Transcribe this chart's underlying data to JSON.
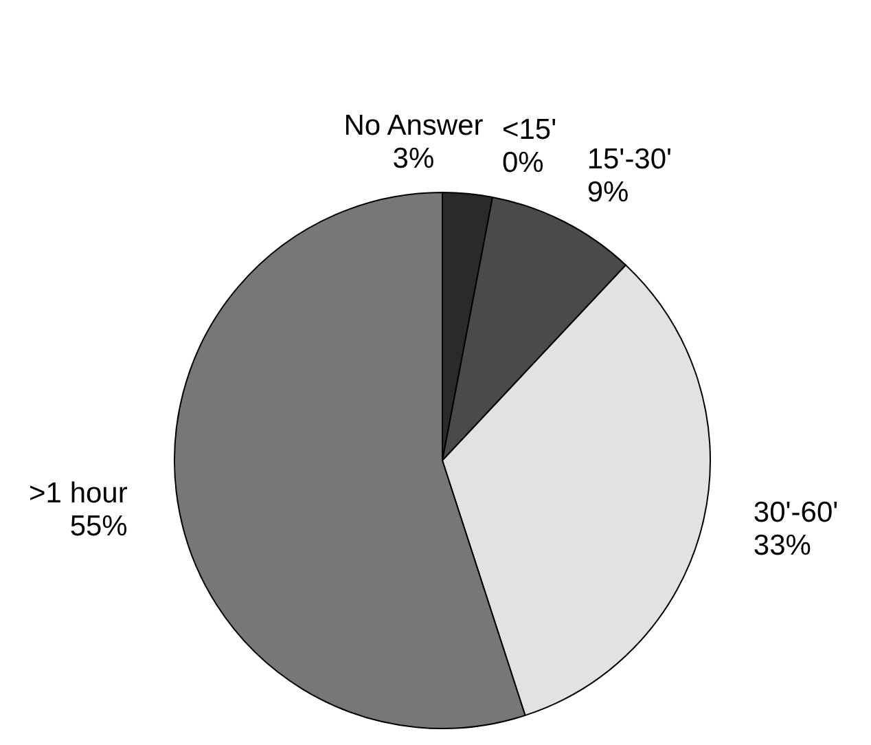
{
  "chart_data": {
    "type": "pie",
    "categories": [
      "No Answer",
      "<15'",
      "15'-30'",
      "30'-60'",
      ">1 hour"
    ],
    "values": [
      3,
      0,
      9,
      33,
      55
    ],
    "value_labels": [
      "3%",
      "0%",
      "9%",
      "33%",
      "55%"
    ],
    "colors": [
      "#2a2a2a",
      "#ffffff",
      "#4a4a4a",
      "#e2e2e2",
      "#777777"
    ]
  }
}
